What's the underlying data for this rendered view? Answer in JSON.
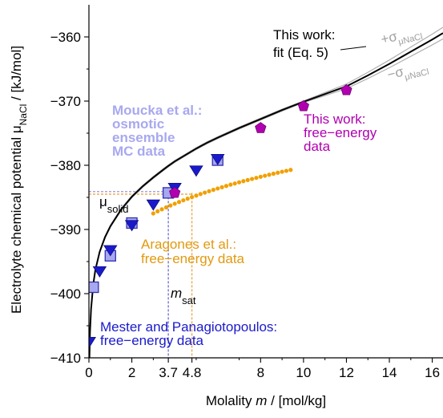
{
  "chart_data": {
    "type": "scatter",
    "xlabel_parts": [
      "Molality ",
      "m",
      " / [mol/kg]"
    ],
    "ylabel_parts": [
      "Electrolyte chemical potential μ",
      "NaCl",
      " / [kJ/mol]"
    ],
    "xlim": [
      0,
      16.5
    ],
    "ylim": [
      -410,
      -355
    ],
    "x_ticks": [
      {
        "value": 0,
        "label": "0"
      },
      {
        "value": 2,
        "label": "2"
      },
      {
        "value": 3.7,
        "label": "3.7"
      },
      {
        "value": 4.8,
        "label": "4.8"
      },
      {
        "value": 8,
        "label": "8"
      },
      {
        "value": 10,
        "label": "10"
      },
      {
        "value": 12,
        "label": "12"
      },
      {
        "value": 14,
        "label": "14"
      },
      {
        "value": 16,
        "label": "16"
      }
    ],
    "y_ticks": [
      {
        "value": -360,
        "label": "−360"
      },
      {
        "value": -370,
        "label": "−370"
      },
      {
        "value": -380,
        "label": "−380"
      },
      {
        "value": -390,
        "label": "−390"
      },
      {
        "value": -400,
        "label": "−400"
      },
      {
        "value": -410,
        "label": "−410"
      }
    ],
    "fit_curve": {
      "name": "This work: fit (Eq. 5)",
      "color": "#000000",
      "x": [
        0.02,
        0.05,
        0.1,
        0.2,
        0.3,
        0.5,
        0.75,
        1.0,
        1.5,
        2.0,
        2.5,
        3.0,
        3.5,
        3.7,
        4.0,
        4.5,
        5.0,
        5.5,
        6.0,
        7.0,
        8.0,
        9.0,
        10.0,
        11.0,
        12.0,
        13.0,
        14.0,
        15.0,
        16.0,
        16.5
      ],
      "y": [
        -410.5,
        -406.0,
        -402.4,
        -398.6,
        -396.3,
        -393.5,
        -391.2,
        -389.5,
        -386.9,
        -384.9,
        -383.3,
        -381.9,
        -380.6,
        -380.1,
        -379.4,
        -378.4,
        -377.4,
        -376.5,
        -375.7,
        -374.2,
        -372.8,
        -371.4,
        -370.1,
        -368.9,
        -367.7,
        -366.0,
        -364.2,
        -362.3,
        -360.4,
        -359.4
      ]
    },
    "band_labels": [
      {
        "sign": "+σ",
        "sub": "μNaCl",
        "color": "#a0a0a0"
      },
      {
        "sign": "−σ",
        "sub": "μNaCl",
        "color": "#a0a0a0"
      }
    ],
    "series": [
      {
        "name": "This work: free−energy data",
        "color": "#b000b0",
        "marker": "pentagon",
        "x": [
          4.0,
          8.0,
          10.0,
          12.0
        ],
        "y": [
          -384.3,
          -374.2,
          -370.8,
          -368.3
        ]
      },
      {
        "name": "Moucka et al.: osmotic ensemble MC data",
        "color": "#a8a8f0",
        "marker": "square",
        "x": [
          0.2,
          1.0,
          2.0,
          3.7,
          6.0
        ],
        "y": [
          -399.0,
          -394.1,
          -389.0,
          -384.3,
          -379.2
        ]
      },
      {
        "name": "Mester and Panagiotopoulos: free−energy data",
        "color": "#1a1acc",
        "marker": "triangle-down",
        "x": [
          0.01,
          0.5,
          1.0,
          2.0,
          3.0,
          4.0,
          5.0,
          6.0
        ],
        "y": [
          -407.5,
          -396.5,
          -393.2,
          -389.3,
          -386.1,
          -383.5,
          -380.8,
          -379.0
        ]
      },
      {
        "name": "Aragones et al.: free−energy data",
        "color": "#f0a000",
        "marker": "dot",
        "x": [
          3.0,
          3.2,
          3.4,
          3.6,
          3.8,
          4.0,
          4.2,
          4.4,
          4.6,
          4.8,
          5.0,
          5.2,
          5.4,
          5.6,
          5.8,
          6.0,
          6.2,
          6.4,
          6.6,
          6.8,
          7.0,
          7.2,
          7.4,
          7.6,
          7.8,
          8.0,
          8.2,
          8.4,
          8.6,
          8.8,
          9.0,
          9.2,
          9.4
        ],
        "y": [
          -387.5,
          -387.17,
          -386.86,
          -386.56,
          -386.27,
          -385.99,
          -385.72,
          -385.46,
          -385.2,
          -384.96,
          -384.72,
          -384.48,
          -384.26,
          -384.04,
          -383.83,
          -383.62,
          -383.42,
          -383.22,
          -383.02,
          -382.84,
          -382.65,
          -382.47,
          -382.3,
          -382.13,
          -381.96,
          -381.79,
          -381.63,
          -381.47,
          -381.31,
          -381.16,
          -381.01,
          -380.87,
          -380.72
        ]
      }
    ],
    "reference_lines": [
      {
        "kind": "h",
        "value": -384.1,
        "from_x": 0,
        "to_x": 3.7,
        "color": "#8888d8"
      },
      {
        "kind": "h",
        "value": -384.5,
        "from_x": 0,
        "to_x": 4.8,
        "color": "#e8a030"
      },
      {
        "kind": "v",
        "value": 3.7,
        "color": "#6060c8"
      },
      {
        "kind": "v",
        "value": 4.8,
        "color": "#e8a030"
      }
    ],
    "annotations": {
      "this_work_fit": [
        "This work:",
        "fit (Eq. 5)"
      ],
      "moucka": [
        "Moucka et al.:",
        "osmotic",
        "ensemble",
        "MC data"
      ],
      "this_work_fe": [
        "This work:",
        "free−energy",
        "data"
      ],
      "aragones": [
        "Aragones et al.:",
        "free−energy data"
      ],
      "mester": [
        "Mester and Panagiotopoulos:",
        "free−energy data"
      ],
      "mu_solid": [
        "μ",
        "solid"
      ],
      "m_sat": [
        "m",
        "sat"
      ]
    }
  }
}
